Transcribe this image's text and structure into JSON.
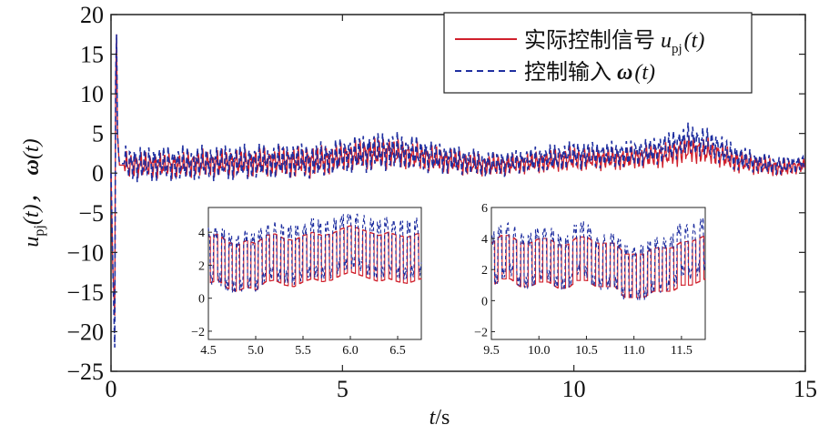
{
  "chart_data": {
    "type": "line",
    "title": "",
    "xlabel_var": "t",
    "xlabel_unit": "/s",
    "ylabel_u": "u",
    "ylabel_sub": "pj",
    "ylabel_t1": "(t)，",
    "ylabel_omega": "ω",
    "ylabel_t2": "(t)",
    "xlim": [
      0,
      15
    ],
    "ylim": [
      -25,
      20
    ],
    "xticks": [
      "0",
      "5",
      "10",
      "15"
    ],
    "yticks": [
      "20",
      "15",
      "10",
      "5",
      "0",
      "−5",
      "−10",
      "−15",
      "−20",
      "−25"
    ],
    "legend": {
      "position": "top-right",
      "entries": [
        {
          "label": "实际控制信号",
          "symbol_main": "u",
          "symbol_sub": "pj",
          "symbol_arg": "(t)",
          "color": "#d0202c",
          "style": "solid"
        },
        {
          "label": "控制输入",
          "symbol_main": "ω",
          "symbol_sub": "",
          "symbol_arg": "(t)",
          "color": "#1f2fa0",
          "style": "dashed"
        }
      ]
    },
    "series": [
      {
        "name": "实际控制信号 u_pj(t)",
        "color": "#d0202c",
        "x": [
          0,
          0.05,
          0.1,
          0.13,
          0.16,
          0.2,
          0.3,
          0.5,
          1,
          1.5,
          2,
          2.5,
          3,
          3.5,
          4,
          4.5,
          5,
          5.5,
          6,
          6.5,
          7,
          7.5,
          8,
          8.5,
          9,
          9.5,
          10,
          10.5,
          11,
          11.5,
          12,
          12.5,
          13,
          13.5,
          14,
          14.5,
          15
        ],
        "y": [
          0,
          -12,
          17.5,
          2,
          1,
          1,
          1,
          1,
          1,
          1,
          1.2,
          1.3,
          1.3,
          1.4,
          1.4,
          1.5,
          2,
          2.4,
          2.6,
          2.2,
          1.8,
          1.4,
          1,
          1,
          1.3,
          1.5,
          1.8,
          1.8,
          1.8,
          2,
          2.3,
          3,
          2.6,
          1.5,
          1,
          0.6,
          1
        ],
        "amplitude": [
          0,
          2,
          1,
          1.5,
          1.5,
          1.5,
          1.5,
          1.5,
          1.5,
          1.5,
          1.6,
          1.6,
          1.6,
          1.7,
          1.8,
          1.8,
          1.6,
          1.8,
          1.8,
          1.6,
          1.5,
          1.4,
          1.3,
          1.2,
          1.2,
          1.3,
          1.4,
          1.3,
          1.3,
          1.3,
          1.5,
          1.6,
          1.5,
          1.3,
          1.1,
          1,
          0.8
        ]
      },
      {
        "name": "控制输入 ω(t)",
        "color": "#1f2fa0",
        "x": [
          0,
          0.05,
          0.1,
          0.13,
          0.16,
          0.2,
          0.3,
          0.5,
          1,
          1.5,
          2,
          2.5,
          3,
          3.5,
          4,
          4.5,
          5,
          5.5,
          6,
          6.5,
          7,
          7.5,
          8,
          8.5,
          9,
          9.5,
          10,
          10.5,
          11,
          11.5,
          12,
          12.5,
          13,
          13.5,
          14,
          14.5,
          15
        ],
        "y": [
          0,
          -22,
          17,
          3,
          1.5,
          1.2,
          1.2,
          1.2,
          1.2,
          1.2,
          1.3,
          1.4,
          1.4,
          1.5,
          1.6,
          1.6,
          2.2,
          2.6,
          2.8,
          2.6,
          2,
          1.6,
          1.2,
          1.2,
          1.6,
          1.9,
          2.3,
          2.3,
          2.3,
          2.6,
          3.2,
          4.3,
          3.6,
          2,
          1.3,
          0.9,
          1.3
        ],
        "amplitude": [
          0,
          2,
          1,
          2,
          2,
          2,
          2,
          2,
          2,
          2,
          2,
          2,
          2,
          2,
          2,
          2,
          2,
          2.2,
          2.2,
          2,
          1.8,
          1.6,
          1.5,
          1.4,
          1.4,
          1.5,
          1.6,
          1.5,
          1.5,
          1.5,
          1.7,
          1.8,
          1.7,
          1.5,
          1.2,
          1.1,
          0.9
        ]
      }
    ],
    "insets": [
      {
        "xlim": [
          4.5,
          6.75
        ],
        "ylim": [
          -2.5,
          5.5
        ],
        "xticks": [
          "4.5",
          "5.0",
          "5.5",
          "6.0",
          "6.5"
        ],
        "xtick_values": [
          4.5,
          5.0,
          5.5,
          6.0,
          6.5
        ],
        "yticks": [
          "4",
          "2",
          "0",
          "−2"
        ],
        "ytick_values": [
          4,
          2,
          0,
          -2
        ],
        "series": [
          {
            "name": "实际控制信号 u_pj(t)",
            "x": [
              4.5,
              4.6,
              4.7,
              4.8,
              4.9,
              5.0,
              5.1,
              5.2,
              5.3,
              5.4,
              5.5,
              5.6,
              5.7,
              5.8,
              5.9,
              6.0,
              6.1,
              6.2,
              6.3,
              6.4,
              6.5,
              6.6,
              6.75
            ],
            "y": [
              2.5,
              2.7,
              2.2,
              2.0,
              2.3,
              2.1,
              2.6,
              2.7,
              2.4,
              2.3,
              2.6,
              2.8,
              2.6,
              2.7,
              3.0,
              3.2,
              3.0,
              2.8,
              2.6,
              2.8,
              2.6,
              2.5,
              2.8
            ]
          },
          {
            "name": "控制输入 ω(t)",
            "x": [
              4.5,
              4.6,
              4.7,
              4.8,
              4.9,
              5.0,
              5.1,
              5.2,
              5.3,
              5.4,
              5.5,
              5.6,
              5.7,
              5.8,
              5.9,
              6.0,
              6.1,
              6.2,
              6.3,
              6.4,
              6.5,
              6.6,
              6.75
            ],
            "y": [
              2.7,
              2.9,
              2.4,
              2.2,
              2.6,
              2.3,
              3.0,
              3.1,
              2.9,
              2.8,
              3.0,
              3.3,
              3.1,
              3.2,
              3.5,
              3.8,
              3.6,
              3.3,
              3.1,
              3.4,
              3.2,
              3.1,
              3.4
            ]
          }
        ]
      },
      {
        "xlim": [
          9.5,
          11.75
        ],
        "ylim": [
          -2.5,
          6
        ],
        "xticks": [
          "9.5",
          "10.0",
          "10.5",
          "11.0",
          "11.5"
        ],
        "xtick_values": [
          9.5,
          10.0,
          10.5,
          11.0,
          11.5
        ],
        "yticks": [
          "6",
          "4",
          "2",
          "0",
          "−2"
        ],
        "ytick_values": [
          6,
          4,
          2,
          0,
          -2
        ],
        "series": [
          {
            "name": "实际控制信号 u_pj(t)",
            "x": [
              9.5,
              9.6,
              9.7,
              9.8,
              9.9,
              10.0,
              10.1,
              10.2,
              10.3,
              10.4,
              10.5,
              10.6,
              10.7,
              10.8,
              10.9,
              11.0,
              11.1,
              11.2,
              11.3,
              11.4,
              11.5,
              11.6,
              11.75
            ],
            "y": [
              2.5,
              3.0,
              3.0,
              2.5,
              2.5,
              2.8,
              2.8,
              2.4,
              2.4,
              2.9,
              2.9,
              2.5,
              2.5,
              2.5,
              1.8,
              1.8,
              1.8,
              2.2,
              2.2,
              2.2,
              2.6,
              2.6,
              3.0
            ]
          },
          {
            "name": "控制输入 ω(t)",
            "x": [
              9.5,
              9.6,
              9.7,
              9.8,
              9.9,
              10.0,
              10.1,
              10.2,
              10.3,
              10.4,
              10.5,
              10.6,
              10.7,
              10.8,
              10.9,
              11.0,
              11.1,
              11.2,
              11.3,
              11.4,
              11.5,
              11.6,
              11.75
            ],
            "y": [
              2.7,
              3.3,
              3.6,
              2.8,
              2.7,
              3.2,
              3.3,
              2.7,
              2.6,
              3.6,
              3.5,
              2.6,
              2.7,
              2.8,
              2.0,
              2.0,
              2.0,
              2.5,
              2.5,
              2.6,
              3.6,
              3.3,
              3.9
            ]
          }
        ]
      }
    ],
    "grid": false
  }
}
